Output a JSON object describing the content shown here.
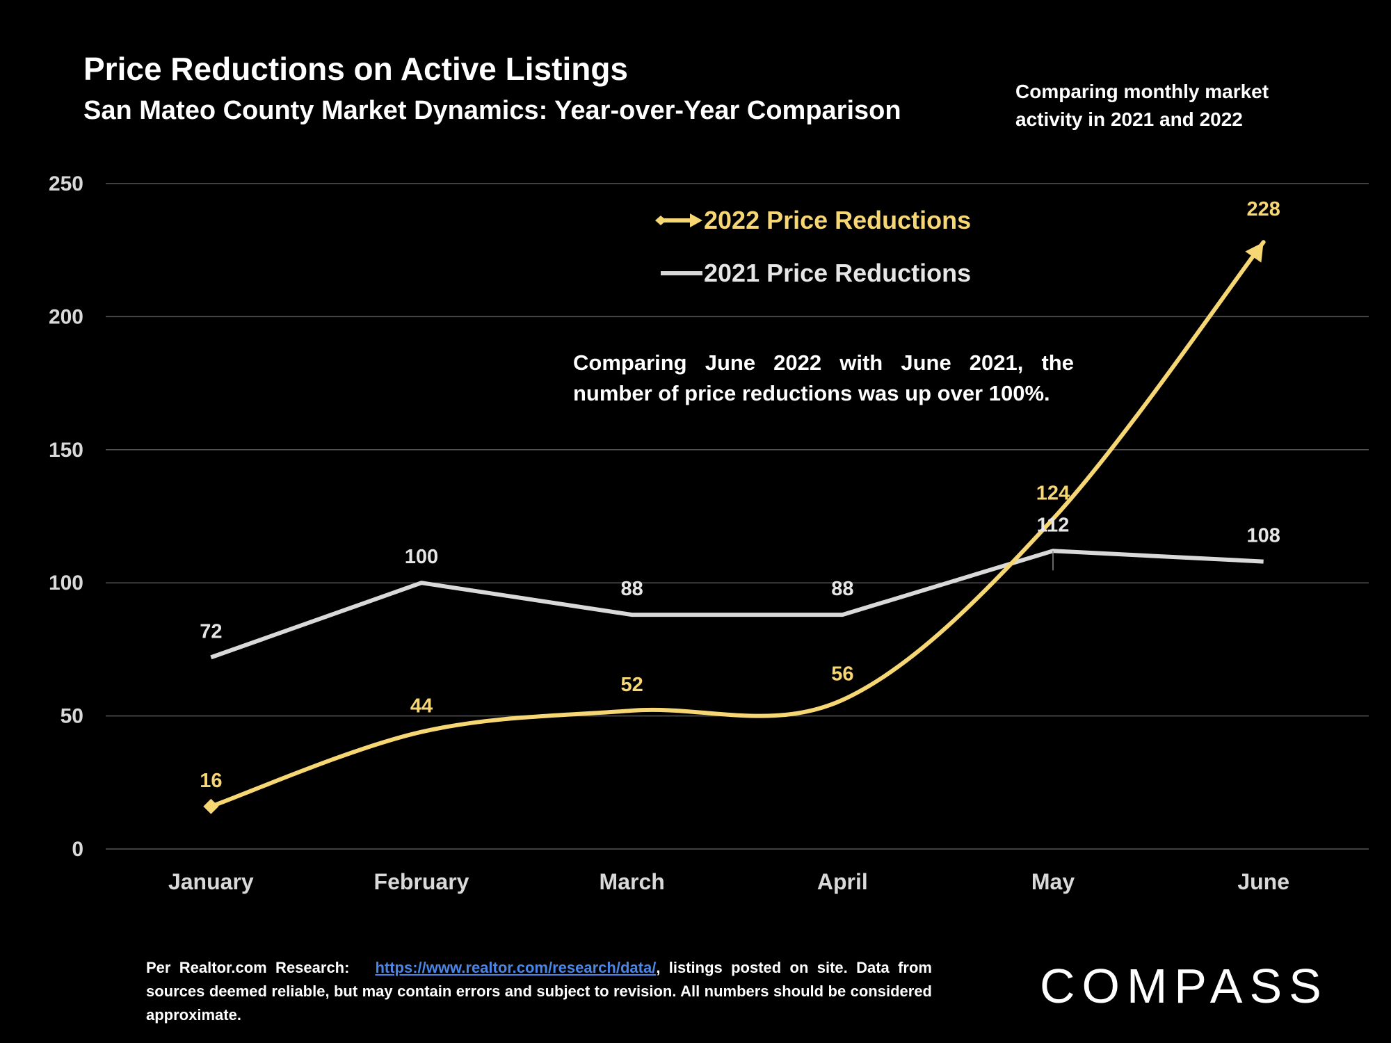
{
  "header": {
    "title": "Price Reductions on Active Listings",
    "subtitle": "San Mateo County Market Dynamics: Year-over-Year Comparison",
    "side_note": "Comparing monthly market activity in 2021 and 2022"
  },
  "callout": "Comparing June 2022 with June 2021, the number of price reductions was up over 100%.",
  "footnote": {
    "prefix": "Per Realtor.com Research:",
    "link": "https://www.realtor.com/research/data/",
    "suffix": ", listings posted on site. Data from sources deemed reliable, but may contain errors and subject to revision. All numbers should be considered approximate."
  },
  "brand": "COMPASS",
  "colors": {
    "series_2022": "#f7d774",
    "series_2021": "#d9d9d9",
    "gridline": "#555555",
    "background": "#000000"
  },
  "chart_data": {
    "type": "line",
    "title": "Price Reductions on Active Listings",
    "subtitle": "San Mateo County Market Dynamics: Year-over-Year Comparison",
    "categories": [
      "January",
      "February",
      "March",
      "April",
      "May",
      "June"
    ],
    "ylim": [
      0,
      250
    ],
    "yticks": [
      0,
      50,
      100,
      150,
      200,
      250
    ],
    "grid": true,
    "legend_position": "top-center",
    "series": [
      {
        "name": "2022 Price Reductions",
        "values": [
          16,
          44,
          52,
          56,
          124,
          228
        ],
        "color": "#f7d774",
        "smooth": true,
        "marker": "arrow"
      },
      {
        "name": "2021 Price Reductions",
        "values": [
          72,
          100,
          88,
          88,
          112,
          108
        ],
        "color": "#d9d9d9",
        "smooth": false
      }
    ]
  }
}
